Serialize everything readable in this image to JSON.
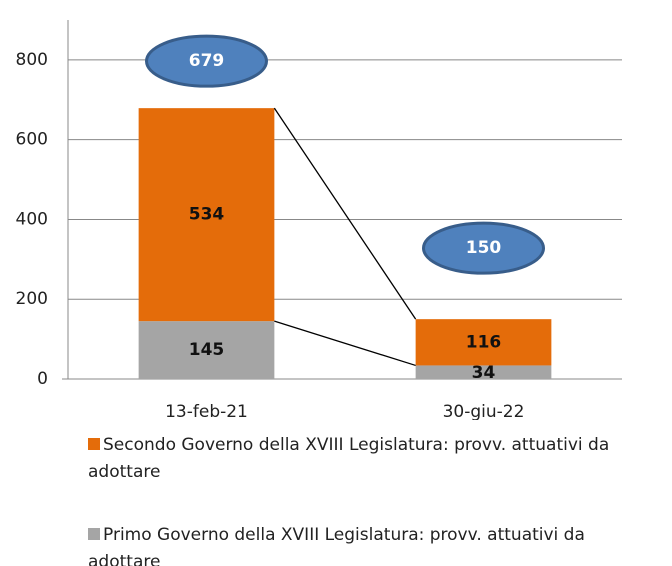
{
  "chart_data": {
    "type": "stacked_bar",
    "categories": [
      "13-feb-21",
      "30-giu-22"
    ],
    "series": [
      {
        "name": "Primo Governo della XVIII Legislatura: provv. attuativi da adottare",
        "color": "#a5a5a5",
        "values": [
          145,
          34
        ]
      },
      {
        "name": "Secondo Governo della XVIII Legislatura: provv. attuativi da adottare",
        "color": "#e46c0a",
        "values": [
          534,
          116
        ]
      }
    ],
    "totals": [
      679,
      150
    ],
    "ylim": [
      0,
      900
    ],
    "yticks": [
      0,
      200,
      400,
      600,
      800
    ],
    "grid": true
  }
}
